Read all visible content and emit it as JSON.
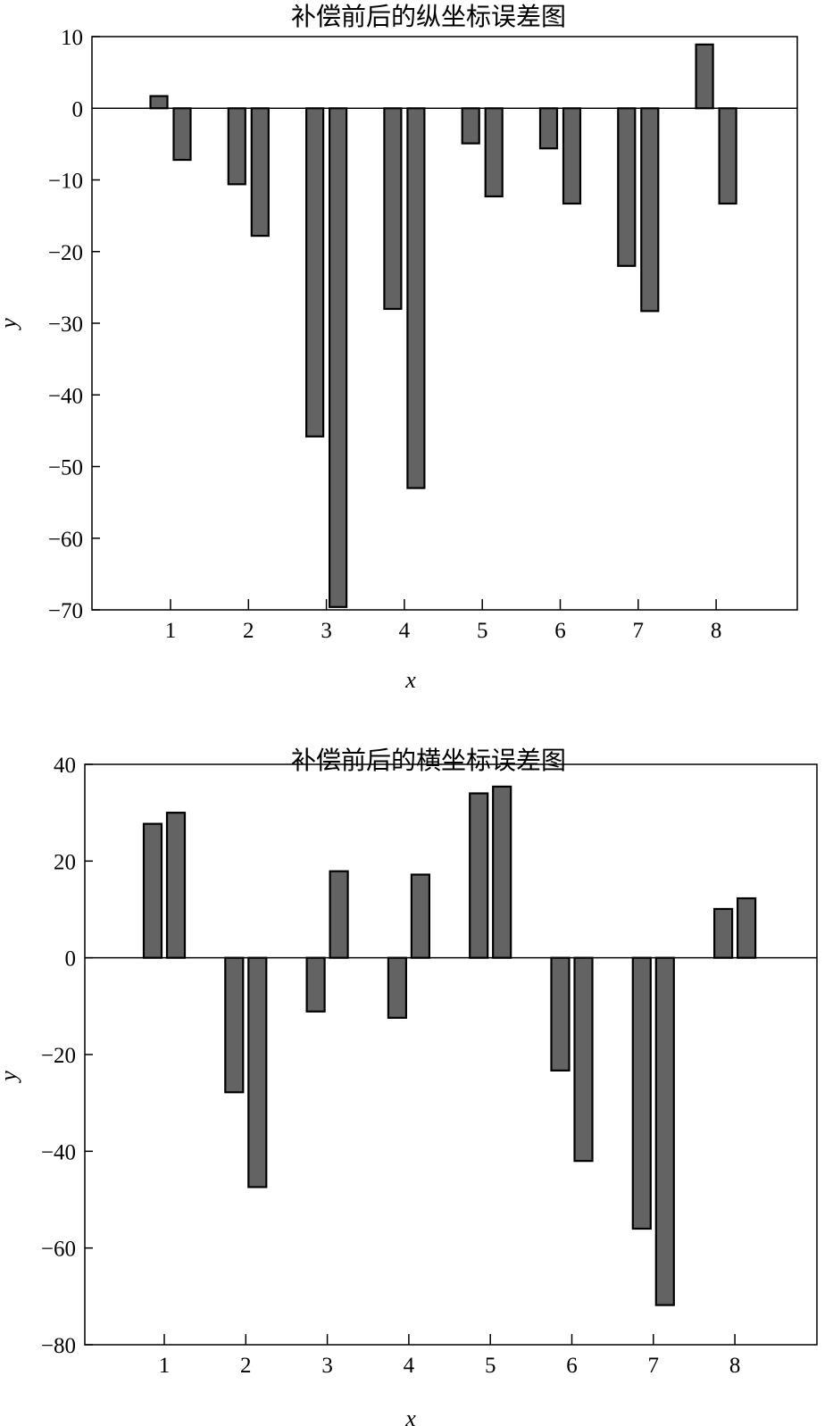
{
  "chart_data": [
    {
      "type": "bar",
      "title": "补偿前后的纵坐标误差图",
      "xlabel": "x",
      "ylabel": "y",
      "categories": [
        "1",
        "2",
        "3",
        "4",
        "5",
        "6",
        "7",
        "8"
      ],
      "ylim": [
        -70,
        10
      ],
      "yticks": [
        "10",
        "0",
        "−10",
        "−20",
        "−30",
        "−40",
        "−50",
        "−60",
        "−70"
      ],
      "series": [
        {
          "values": [
            1.7,
            -10.6,
            -45.8,
            -28.0,
            -4.9,
            -5.6,
            -22.0,
            8.9
          ]
        },
        {
          "values": [
            -7.2,
            -17.8,
            -69.6,
            -53.0,
            -12.3,
            -13.3,
            -28.3,
            -13.3
          ]
        }
      ],
      "bar_color": "#636363",
      "grid": false
    },
    {
      "type": "bar",
      "title": "补偿前后的横坐标误差图",
      "xlabel": "x",
      "ylabel": "y",
      "categories": [
        "1",
        "2",
        "3",
        "4",
        "5",
        "6",
        "7",
        "8"
      ],
      "ylim": [
        -80,
        40
      ],
      "yticks": [
        "40",
        "20",
        "0",
        "−20",
        "−40",
        "−60",
        "−80"
      ],
      "series": [
        {
          "values": [
            27.7,
            -27.8,
            -11.1,
            -12.4,
            34.0,
            -23.3,
            -56.0,
            10.1
          ]
        },
        {
          "values": [
            30.0,
            -47.4,
            17.9,
            17.2,
            35.4,
            -42.0,
            -71.8,
            12.3
          ]
        }
      ],
      "bar_color": "#636363",
      "grid": false
    }
  ]
}
